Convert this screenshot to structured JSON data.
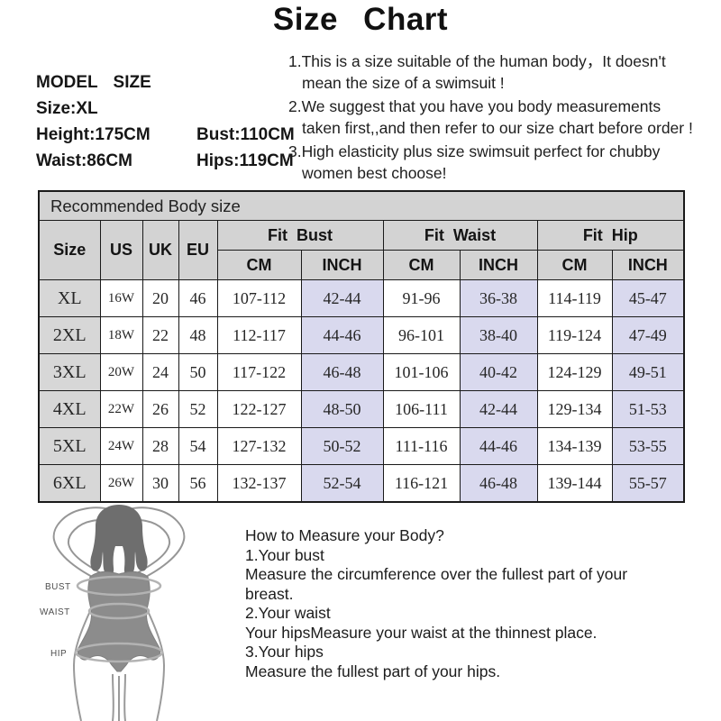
{
  "title": "Size Chart",
  "model_info": {
    "heading": "MODEL SIZE",
    "size": "Size:XL",
    "height": "Height:175CM",
    "bust": "Bust:110CM",
    "waist": "Waist:86CM",
    "hips": "Hips:119CM"
  },
  "notes": [
    {
      "lines": [
        "1.This is a size suitable of the human body，It doesn't",
        "mean the size of a swimsuit !"
      ]
    },
    {
      "lines": [
        "2.We suggest that you have you body measurements",
        "taken first,,and then refer to our size chart before order !"
      ]
    },
    {
      "lines": [
        "3.High elasticity plus size swimsuit perfect for chubby",
        "women best choose!"
      ]
    }
  ],
  "size_table": {
    "caption": "Recommended Body size",
    "simple_headers": [
      "Size",
      "US",
      "UK",
      "EU"
    ],
    "group_headers": [
      {
        "label": "Fit  Bust",
        "sub": [
          "CM",
          "INCH"
        ]
      },
      {
        "label": "Fit  Waist",
        "sub": [
          "CM",
          "INCH"
        ]
      },
      {
        "label": "Fit  Hip",
        "sub": [
          "CM",
          "INCH"
        ]
      }
    ],
    "rows": [
      [
        "XL",
        "16W",
        "20",
        "46",
        "107-112",
        "42-44",
        "91-96",
        "36-38",
        "114-119",
        "45-47"
      ],
      [
        "2XL",
        "18W",
        "22",
        "48",
        "112-117",
        "44-46",
        "96-101",
        "38-40",
        "119-124",
        "47-49"
      ],
      [
        "3XL",
        "20W",
        "24",
        "50",
        "117-122",
        "46-48",
        "101-106",
        "40-42",
        "124-129",
        "49-51"
      ],
      [
        "4XL",
        "22W",
        "26",
        "52",
        "122-127",
        "48-50",
        "106-111",
        "42-44",
        "129-134",
        "51-53"
      ],
      [
        "5XL",
        "24W",
        "28",
        "54",
        "127-132",
        "50-52",
        "111-116",
        "44-46",
        "134-139",
        "53-55"
      ],
      [
        "6XL",
        "26W",
        "30",
        "56",
        "132-137",
        "52-54",
        "116-121",
        "46-48",
        "139-144",
        "55-57"
      ]
    ]
  },
  "measure_guide": {
    "figure_labels": {
      "bust": "BUST",
      "waist": "WAIST",
      "hip": "HIP"
    },
    "lines": [
      "How to Measure your Body?",
      "1.Your bust",
      "Measure the circumference over the fullest part of your",
      "breast.",
      "2.Your waist",
      "Your hipsMeasure your waist at the thinnest place.",
      "3.Your hips",
      "Measure the fullest part of your hips."
    ]
  },
  "colors": {
    "table_header_bg": "#d3d3d3",
    "size_col_bg": "#d7d7d7",
    "inch_col_bg": "#d9d9ee",
    "border": "#1a1a1a"
  }
}
